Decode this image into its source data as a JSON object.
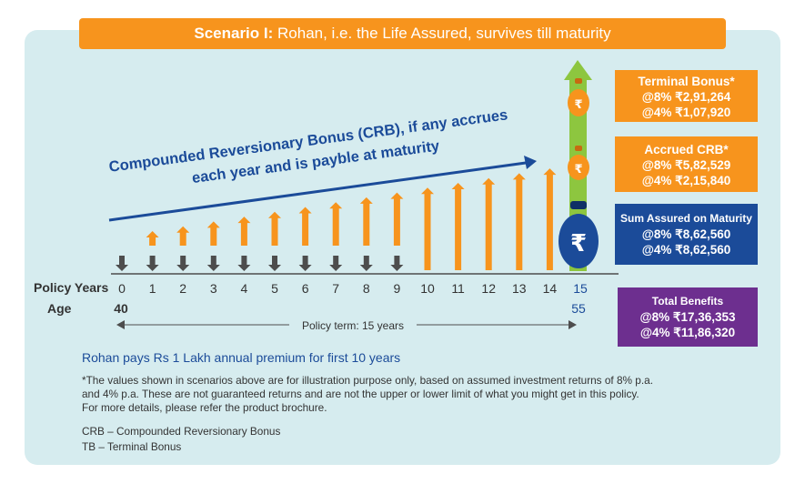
{
  "banner": {
    "lead": "Scenario I:",
    "text": "Rohan, i.e. the Life Assured, survives till maturity"
  },
  "crb_label": {
    "line1": "Compounded Reversionary Bonus (CRB), if any accrues",
    "line2": "each year and is payble at maturity"
  },
  "axis": {
    "policy_years_label": "Policy Years",
    "age_label": "Age",
    "years": [
      "0",
      "1",
      "2",
      "3",
      "4",
      "5",
      "6",
      "7",
      "8",
      "9",
      "10",
      "11",
      "12",
      "13",
      "14",
      "15"
    ],
    "age_start": "40",
    "age_end": "55",
    "term_label": "Policy term: 15 years"
  },
  "premium_years": 10,
  "boxes": {
    "terminal": {
      "title": "Terminal Bonus*",
      "line1": "@8% ₹2,91,264",
      "line2": "@4% ₹1,07,920"
    },
    "crb": {
      "title": "Accrued CRB*",
      "line1": "@8% ₹5,82,529",
      "line2": "@4% ₹2,15,840"
    },
    "sum_assured": {
      "title": "Sum Assured on Maturity",
      "line1": "@8% ₹8,62,560",
      "line2": "@4% ₹8,62,560"
    },
    "total": {
      "title": "Total Benefits",
      "line1": "@8% ₹17,36,353",
      "line2": "@4% ₹11,86,320"
    }
  },
  "bag_symbol": "₹",
  "premium_text": "Rohan pays Rs 1 Lakh annual premium for first 10 years",
  "disclaimer": {
    "line1": "*The values shown in scenarios above are for illustration purpose only, based on assumed investment returns of 8% p.a.",
    "line2": "and 4% p.a. These are not guaranteed returns and are not the upper or lower limit of what you might get in this policy.",
    "line3": "For more details, please refer the product brochure."
  },
  "abbreviations": {
    "crb": "CRB – Compounded Reversionary Bonus",
    "tb": "TB – Terminal Bonus"
  },
  "colors": {
    "orange": "#f7941d",
    "navy": "#1b4b99",
    "purple": "#6d2f8f",
    "green": "#8dc63f",
    "grey": "#4d4d4d",
    "panel": "#d6ecef"
  }
}
